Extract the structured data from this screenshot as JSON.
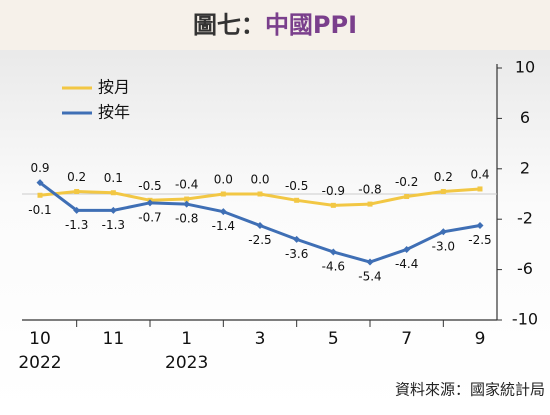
{
  "chart_data": {
    "type": "line",
    "title": [
      "圖七：",
      "中國PPI"
    ],
    "categories": [
      "10",
      null,
      "11",
      null,
      "1",
      null,
      "3",
      null,
      "5",
      null,
      "7",
      null,
      "9"
    ],
    "category_years": [
      "2022",
      null,
      null,
      null,
      "2023",
      null,
      null,
      null,
      null,
      null,
      null,
      null,
      null
    ],
    "series": [
      {
        "name": "按月",
        "color": "#f2c744",
        "values": [
          -0.1,
          0.2,
          0.1,
          -0.5,
          -0.4,
          0.0,
          0.0,
          -0.5,
          -0.9,
          -0.8,
          -0.2,
          0.2,
          0.4
        ],
        "value_labels": [
          "-0.1",
          "0.2",
          "0.1",
          "-0.5",
          "-0.4",
          "0.0",
          "0.0",
          "-0.5",
          "-0.9",
          "-0.8",
          "-0.2",
          "0.2",
          "0.4"
        ]
      },
      {
        "name": "按年",
        "color": "#3f6fb5",
        "values": [
          0.9,
          -1.3,
          -1.3,
          -0.7,
          -0.8,
          -1.4,
          -2.5,
          -3.6,
          -4.6,
          -5.4,
          -4.4,
          -3.0,
          -2.5
        ],
        "value_labels": [
          "0.9",
          "-1.3",
          "-1.3",
          "-0.7",
          "-0.8",
          "-1.4",
          "-2.5",
          "-3.6",
          "-4.6",
          "-5.4",
          "-4.4",
          "-3.0",
          "-2.5"
        ]
      }
    ],
    "ylim": [
      -10,
      10
    ],
    "yticks": [
      10,
      6,
      2,
      -2,
      -6,
      -10
    ],
    "legend": "upper left",
    "source": "資料來源：國家統計局"
  }
}
